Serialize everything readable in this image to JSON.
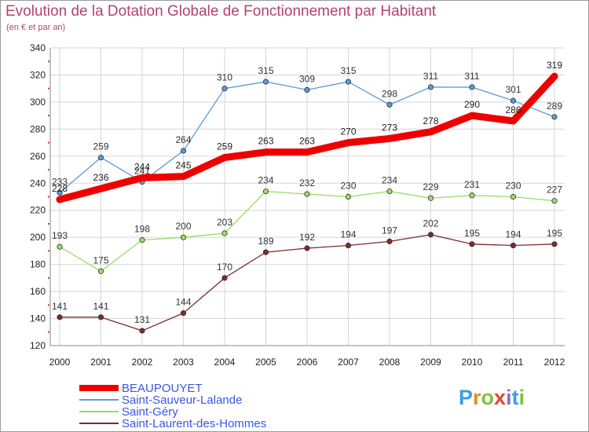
{
  "header": {
    "title": "Evolution de la Dotation Globale de Fonctionnement par Habitant",
    "subtitle": "(en € et par an)"
  },
  "branding": {
    "logo_text": "Proxiti",
    "logo_letters": [
      "P",
      "r",
      "o",
      "x",
      "i",
      "t",
      "i"
    ],
    "logo_colors": [
      "#3aa0e0",
      "#e88a24",
      "#7fc241",
      "#e8452a",
      "#8e6ec8",
      "#3aa0e0",
      "#7fc241"
    ]
  },
  "chart_data": {
    "type": "line",
    "title": "Evolution de la Dotation Globale de Fonctionnement par Habitant",
    "subtitle": "(en € et par an)",
    "xlabel": "",
    "ylabel": "",
    "categories": [
      "2000",
      "2001",
      "2002",
      "2003",
      "2004",
      "2005",
      "2006",
      "2007",
      "2008",
      "2009",
      "2010",
      "2011",
      "2012"
    ],
    "ylim": [
      120,
      340
    ],
    "yticks": [
      120,
      140,
      160,
      180,
      200,
      220,
      240,
      260,
      280,
      300,
      320,
      340
    ],
    "grid": true,
    "legend_position": "bottom-left",
    "series": [
      {
        "name": "BEAUPOUYET",
        "color": "#ee0000",
        "emphasis": true,
        "values": [
          228,
          236,
          244,
          245,
          259,
          263,
          263,
          270,
          273,
          278,
          290,
          286,
          319
        ]
      },
      {
        "name": "Saint-Sauveur-Lalande",
        "color": "#5b9bd5",
        "emphasis": false,
        "values": [
          233,
          259,
          241,
          264,
          310,
          315,
          309,
          315,
          298,
          311,
          311,
          301,
          289
        ]
      },
      {
        "name": "Saint-Géry",
        "color": "#99dd66",
        "emphasis": false,
        "values": [
          193,
          175,
          198,
          200,
          203,
          234,
          232,
          230,
          234,
          229,
          231,
          230,
          227
        ]
      },
      {
        "name": "Saint-Laurent-des-Hommes",
        "color": "#7a2c2c",
        "emphasis": false,
        "values": [
          141,
          141,
          131,
          144,
          170,
          189,
          192,
          194,
          197,
          202,
          195,
          194,
          195
        ]
      }
    ]
  }
}
